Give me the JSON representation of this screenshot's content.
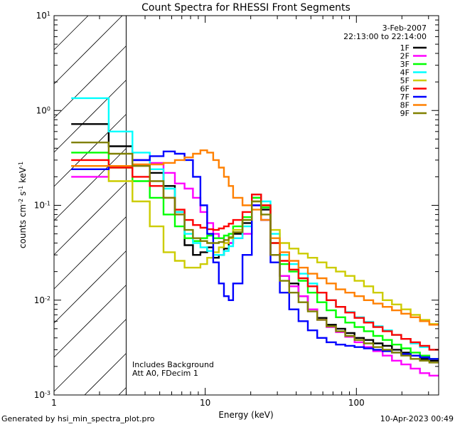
{
  "chart_data": {
    "type": "line",
    "title": "Count Spectra for RHESSI Front Segments",
    "xlabel": "Energy (keV)",
    "ylabel": "counts cm^-2 s^-1 keV^-1",
    "ylabel_parts": {
      "base": "counts cm",
      "e1": "-2",
      "mid": " s",
      "e2": "-1",
      "tail": " keV",
      "e3": "-1"
    },
    "xscale": "log",
    "yscale": "log",
    "xlim": [
      1,
      350
    ],
    "ylim": [
      0.001,
      10
    ],
    "x_ticks": [
      {
        "value": 1,
        "label": "1"
      },
      {
        "value": 10,
        "label": "10"
      },
      {
        "value": 100,
        "label": "100"
      }
    ],
    "y_ticks": [
      {
        "value": 0.001,
        "base": "10",
        "exp": "-3"
      },
      {
        "value": 0.01,
        "base": "10",
        "exp": "-2"
      },
      {
        "value": 0.1,
        "base": "10",
        "exp": "-1"
      },
      {
        "value": 1,
        "base": "10",
        "exp": "0"
      },
      {
        "value": 10,
        "base": "10",
        "exp": "1"
      }
    ],
    "date_label": "3-Feb-2007",
    "time_label": "22:13:00 to 22:14:00",
    "shaded_region": {
      "from": 1,
      "to": 3,
      "pattern": "diagonal-hatch"
    },
    "annotations": [
      "Includes Background",
      "Att A0, FDecim 1"
    ],
    "legend_position": "top-right",
    "series": [
      {
        "name": "1F",
        "color": "#000000",
        "values": [
          0.72,
          0.42,
          0.3,
          0.22,
          0.16,
          0.085,
          0.038,
          0.03,
          0.032,
          0.036,
          0.028,
          0.03,
          0.035,
          0.04,
          0.05,
          0.065,
          0.12,
          0.09,
          0.03,
          0.018,
          0.015,
          0.011,
          0.008,
          0.0065,
          0.0055,
          0.005,
          0.0045,
          0.004,
          0.0038,
          0.0035,
          0.0033,
          0.003,
          0.0028,
          0.0026,
          0.0024,
          0.0023,
          0.0022,
          0.002
        ]
      },
      {
        "name": "2F",
        "color": "#ff00ff",
        "values": [
          0.2,
          0.26,
          0.3,
          0.28,
          0.22,
          0.17,
          0.15,
          0.12,
          0.085,
          0.065,
          0.05,
          0.045,
          0.04,
          0.04,
          0.045,
          0.05,
          0.1,
          0.07,
          0.03,
          0.018,
          0.014,
          0.011,
          0.008,
          0.0062,
          0.0052,
          0.0046,
          0.0041,
          0.0036,
          0.0032,
          0.0029,
          0.0026,
          0.0023,
          0.0021,
          0.0019,
          0.0017,
          0.0016,
          0.0015,
          0.0014
        ]
      },
      {
        "name": "3F",
        "color": "#00ff00",
        "values": [
          0.36,
          0.25,
          0.18,
          0.12,
          0.08,
          0.06,
          0.045,
          0.042,
          0.045,
          0.048,
          0.045,
          0.045,
          0.048,
          0.05,
          0.06,
          0.075,
          0.12,
          0.095,
          0.04,
          0.024,
          0.02,
          0.016,
          0.012,
          0.0095,
          0.0078,
          0.0066,
          0.0058,
          0.0052,
          0.0047,
          0.0042,
          0.0038,
          0.0034,
          0.0031,
          0.0028,
          0.0026,
          0.0024,
          0.0022,
          0.002
        ]
      },
      {
        "name": "4F",
        "color": "#00ffff",
        "values": [
          1.35,
          0.6,
          0.36,
          0.24,
          0.15,
          0.085,
          0.05,
          0.04,
          0.036,
          0.033,
          0.03,
          0.03,
          0.033,
          0.037,
          0.045,
          0.06,
          0.13,
          0.11,
          0.05,
          0.03,
          0.024,
          0.019,
          0.015,
          0.012,
          0.01,
          0.0085,
          0.0075,
          0.0066,
          0.0059,
          0.0053,
          0.0048,
          0.0043,
          0.0039,
          0.0035,
          0.0032,
          0.003,
          0.0028,
          0.0026
        ]
      },
      {
        "name": "5F",
        "color": "#cccc00",
        "values": [
          0.26,
          0.18,
          0.11,
          0.06,
          0.032,
          0.026,
          0.022,
          0.022,
          0.024,
          0.028,
          0.032,
          0.036,
          0.04,
          0.045,
          0.055,
          0.07,
          0.11,
          0.1,
          0.055,
          0.04,
          0.035,
          0.031,
          0.028,
          0.025,
          0.022,
          0.02,
          0.018,
          0.016,
          0.014,
          0.012,
          0.01,
          0.009,
          0.008,
          0.007,
          0.0062,
          0.0056,
          0.005,
          0.0045
        ]
      },
      {
        "name": "6F",
        "color": "#ff0000",
        "values": [
          0.3,
          0.25,
          0.2,
          0.16,
          0.12,
          0.09,
          0.07,
          0.062,
          0.058,
          0.056,
          0.055,
          0.057,
          0.06,
          0.064,
          0.07,
          0.085,
          0.13,
          0.1,
          0.04,
          0.026,
          0.021,
          0.017,
          0.014,
          0.012,
          0.01,
          0.0085,
          0.0074,
          0.0065,
          0.0058,
          0.0052,
          0.0047,
          0.0043,
          0.0039,
          0.0036,
          0.0033,
          0.003,
          0.0028,
          0.0026
        ]
      },
      {
        "name": "7F",
        "color": "#0000ff",
        "values": [
          0.24,
          0.26,
          0.3,
          0.33,
          0.37,
          0.35,
          0.3,
          0.2,
          0.1,
          0.05,
          0.025,
          0.015,
          0.011,
          0.01,
          0.015,
          0.03,
          0.1,
          0.07,
          0.025,
          0.012,
          0.008,
          0.006,
          0.0048,
          0.004,
          0.0036,
          0.0034,
          0.0033,
          0.0032,
          0.0031,
          0.003,
          0.0029,
          0.0028,
          0.0027,
          0.0026,
          0.0025,
          0.0024,
          0.0023,
          0.0022
        ]
      },
      {
        "name": "8F",
        "color": "#ff8000",
        "values": [
          0.26,
          0.26,
          0.27,
          0.27,
          0.28,
          0.3,
          0.32,
          0.35,
          0.38,
          0.36,
          0.3,
          0.25,
          0.2,
          0.16,
          0.12,
          0.1,
          0.09,
          0.07,
          0.045,
          0.032,
          0.026,
          0.022,
          0.019,
          0.017,
          0.015,
          0.013,
          0.012,
          0.011,
          0.01,
          0.0092,
          0.0085,
          0.0078,
          0.0072,
          0.0066,
          0.006,
          0.0055,
          0.005,
          0.0045
        ]
      },
      {
        "name": "9F",
        "color": "#808000",
        "values": [
          0.46,
          0.35,
          0.26,
          0.18,
          0.12,
          0.08,
          0.055,
          0.045,
          0.042,
          0.04,
          0.04,
          0.041,
          0.043,
          0.046,
          0.052,
          0.07,
          0.11,
          0.08,
          0.03,
          0.016,
          0.012,
          0.0095,
          0.0076,
          0.0062,
          0.0053,
          0.0047,
          0.0042,
          0.0038,
          0.0035,
          0.0032,
          0.003,
          0.0028,
          0.0026,
          0.0024,
          0.0023,
          0.0022,
          0.0021,
          0.002
        ]
      }
    ]
  },
  "footer": {
    "generated_by": "Generated by hsi_min_spectra_plot.pro",
    "timestamp": "10-Apr-2023 00:49"
  }
}
